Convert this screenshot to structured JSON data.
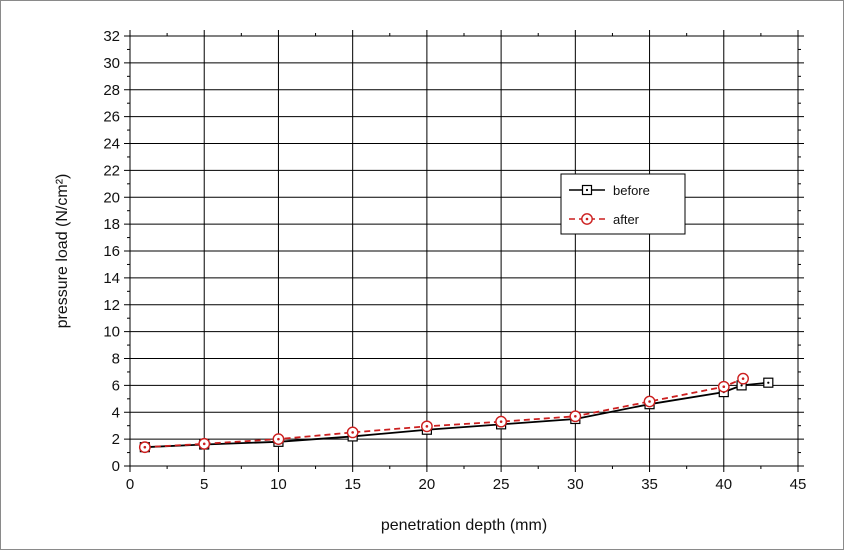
{
  "chart_data": {
    "type": "line",
    "xlabel": "penetration depth (mm)",
    "ylabel": "pressure load (N/cm²)",
    "xlim": [
      0,
      45
    ],
    "ylim": [
      0,
      32
    ],
    "xticks": [
      0,
      5,
      10,
      15,
      20,
      25,
      30,
      35,
      40,
      45
    ],
    "yticks": [
      0,
      2,
      4,
      6,
      8,
      10,
      12,
      14,
      16,
      18,
      20,
      22,
      24,
      26,
      28,
      30,
      32
    ],
    "grid": true,
    "legend": {
      "placement": "center-right"
    },
    "series": [
      {
        "name": "before",
        "color": "#000000",
        "line_style": "solid",
        "marker": "square-dot",
        "x": [
          1,
          5,
          10,
          15,
          20,
          25,
          30,
          35,
          40,
          41.2,
          43
        ],
        "y": [
          1.4,
          1.6,
          1.8,
          2.2,
          2.7,
          3.1,
          3.5,
          4.6,
          5.5,
          6.0,
          6.2
        ]
      },
      {
        "name": "after",
        "color": "#cc1f1f",
        "line_style": "dashed",
        "marker": "circle-dot",
        "x": [
          1,
          5,
          10,
          15,
          20,
          25,
          30,
          35,
          40,
          41.3
        ],
        "y": [
          1.4,
          1.65,
          2.0,
          2.5,
          2.95,
          3.3,
          3.7,
          4.8,
          5.9,
          6.5
        ]
      }
    ]
  }
}
